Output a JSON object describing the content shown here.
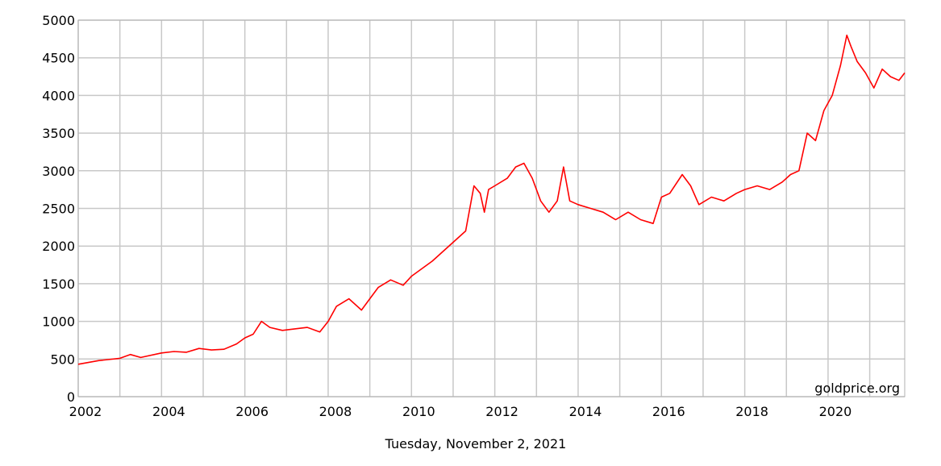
{
  "chart_data": {
    "type": "line",
    "title": "",
    "xlabel": "",
    "ylabel": "",
    "xlim": [
      2002.0,
      2021.84
    ],
    "ylim": [
      0,
      5000
    ],
    "y_ticks": [
      0,
      500,
      1000,
      1500,
      2000,
      2500,
      3000,
      3500,
      4000,
      4500,
      5000
    ],
    "x_ticks": [
      2002,
      2004,
      2006,
      2008,
      2010,
      2012,
      2014,
      2016,
      2018,
      2020
    ],
    "grid": true,
    "legend": "none",
    "series": [
      {
        "color": "#ff0000",
        "x": [
          2002.0,
          2002.5,
          2003.0,
          2003.25,
          2003.5,
          2004.0,
          2004.3,
          2004.6,
          2004.9,
          2005.2,
          2005.5,
          2005.8,
          2006.0,
          2006.2,
          2006.4,
          2006.6,
          2006.9,
          2007.2,
          2007.5,
          2007.8,
          2008.0,
          2008.2,
          2008.5,
          2008.8,
          2009.0,
          2009.2,
          2009.5,
          2009.8,
          2010.0,
          2010.2,
          2010.5,
          2010.8,
          2011.0,
          2011.3,
          2011.5,
          2011.65,
          2011.75,
          2011.85,
          2012.0,
          2012.3,
          2012.5,
          2012.7,
          2012.9,
          2013.1,
          2013.3,
          2013.5,
          2013.65,
          2013.8,
          2014.0,
          2014.3,
          2014.6,
          2014.9,
          2015.2,
          2015.5,
          2015.8,
          2016.0,
          2016.2,
          2016.5,
          2016.7,
          2016.9,
          2017.2,
          2017.5,
          2017.8,
          2018.0,
          2018.3,
          2018.6,
          2018.9,
          2019.1,
          2019.3,
          2019.5,
          2019.7,
          2019.9,
          2020.1,
          2020.3,
          2020.45,
          2020.55,
          2020.7,
          2020.9,
          2021.1,
          2021.3,
          2021.5,
          2021.7,
          2021.84
        ],
        "y": [
          430,
          480,
          510,
          560,
          520,
          580,
          600,
          590,
          640,
          620,
          630,
          700,
          780,
          830,
          1000,
          920,
          880,
          900,
          920,
          860,
          1000,
          1200,
          1300,
          1150,
          1300,
          1450,
          1550,
          1480,
          1600,
          1680,
          1800,
          1950,
          2050,
          2200,
          2800,
          2700,
          2450,
          2750,
          2800,
          2900,
          3050,
          3100,
          2900,
          2600,
          2450,
          2600,
          3050,
          2600,
          2550,
          2500,
          2450,
          2350,
          2450,
          2350,
          2300,
          2650,
          2700,
          2950,
          2800,
          2550,
          2650,
          2600,
          2700,
          2750,
          2800,
          2750,
          2850,
          2950,
          3000,
          3500,
          3400,
          3800,
          4000,
          4400,
          4800,
          4650,
          4450,
          4300,
          4100,
          4350,
          4250,
          4200,
          4300
        ]
      }
    ]
  },
  "watermark": "goldprice.org",
  "caption": "Tuesday, November 2, 2021",
  "x_tick_labels": [
    "2002",
    "2004",
    "2006",
    "2008",
    "2010",
    "2012",
    "2014",
    "2016",
    "2018",
    "2020"
  ],
  "y_tick_labels": [
    "0",
    "500",
    "1000",
    "1500",
    "2000",
    "2500",
    "3000",
    "3500",
    "4000",
    "4500",
    "5000"
  ]
}
